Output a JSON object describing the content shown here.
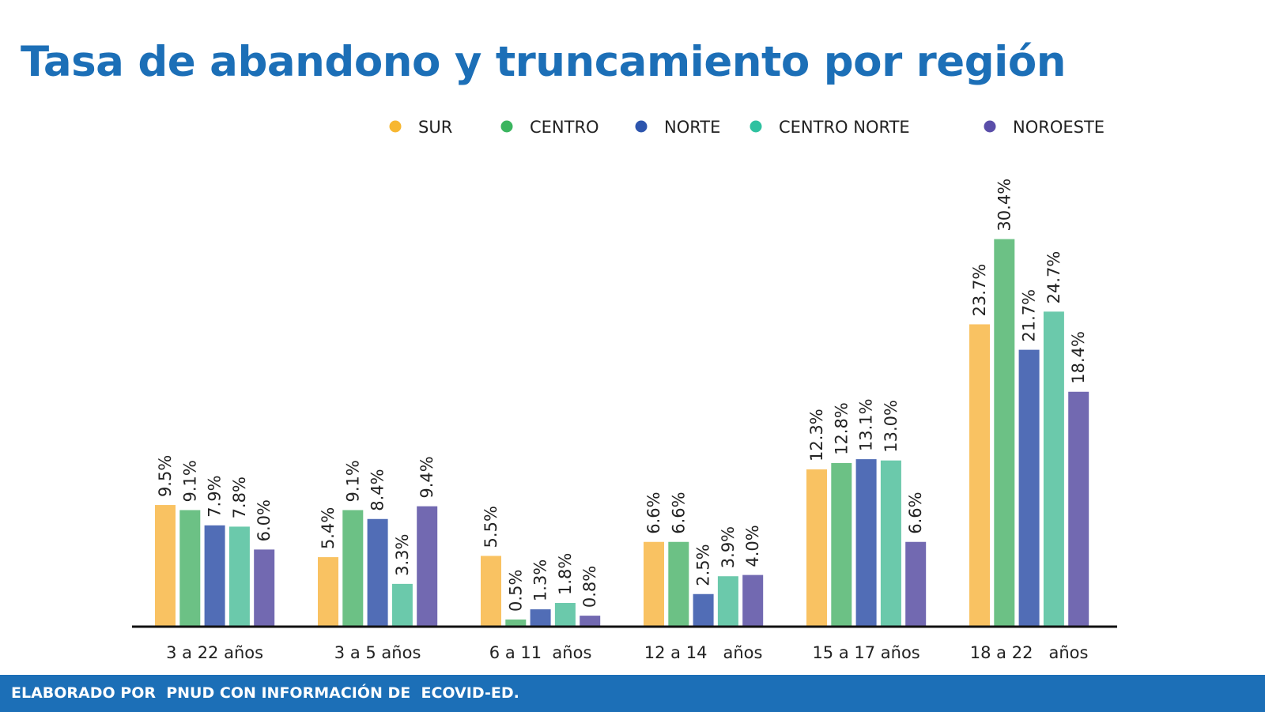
{
  "title": "Tasa de abandono y truncamiento por región",
  "footer": "ELABORADO POR  PNUD CON INFORMACIÓN DE  ECOVID-ED.",
  "chart_data": {
    "type": "bar",
    "categories": [
      "3 a 22 años",
      "3 a 5 años",
      "6 a 11  años",
      "12 a 14   años",
      "15 a 17 años",
      "18 a 22   años"
    ],
    "series": [
      {
        "name": "SUR",
        "color": "#f9c262",
        "legend_color": "#f7b731",
        "values": [
          9.5,
          5.4,
          5.5,
          6.6,
          12.3,
          23.7
        ],
        "labels": [
          "9.5%",
          "5.4%",
          "5.5%",
          "6.6%",
          "12.3%",
          "23.7%"
        ]
      },
      {
        "name": "CENTRO",
        "color": "#6cc185",
        "legend_color": "#3bb55f",
        "values": [
          9.1,
          9.1,
          0.5,
          6.6,
          12.8,
          30.4
        ],
        "labels": [
          "9.1%",
          "9.1%",
          "0.5%",
          "6.6%",
          "12.8%",
          "30.4%"
        ]
      },
      {
        "name": "NORTE",
        "color": "#516db6",
        "legend_color": "#2d55ad",
        "values": [
          7.9,
          8.4,
          1.3,
          2.5,
          13.1,
          21.7
        ],
        "labels": [
          "7.9%",
          "8.4%",
          "1.3%",
          "2.5%",
          "13.1%",
          "21.7%"
        ]
      },
      {
        "name": "CENTRO NORTE",
        "color": "#6bc9ab",
        "legend_color": "#2fc1a0",
        "values": [
          7.8,
          3.3,
          1.8,
          3.9,
          13.0,
          24.7
        ],
        "labels": [
          "7.8%",
          "3.3%",
          "1.8%",
          "3.9%",
          "13.0%",
          "24.7%"
        ]
      },
      {
        "name": "NOROESTE",
        "color": "#7269b1",
        "legend_color": "#5a4ea9",
        "values": [
          6.0,
          9.4,
          0.8,
          4.0,
          6.6,
          18.4
        ],
        "labels": [
          "6.0%",
          "9.4%",
          "0.8%",
          "4.0%",
          "6.6%",
          "18.4%"
        ]
      }
    ],
    "ylim": [
      0,
      32
    ],
    "legend_position": "top",
    "grid": false
  }
}
